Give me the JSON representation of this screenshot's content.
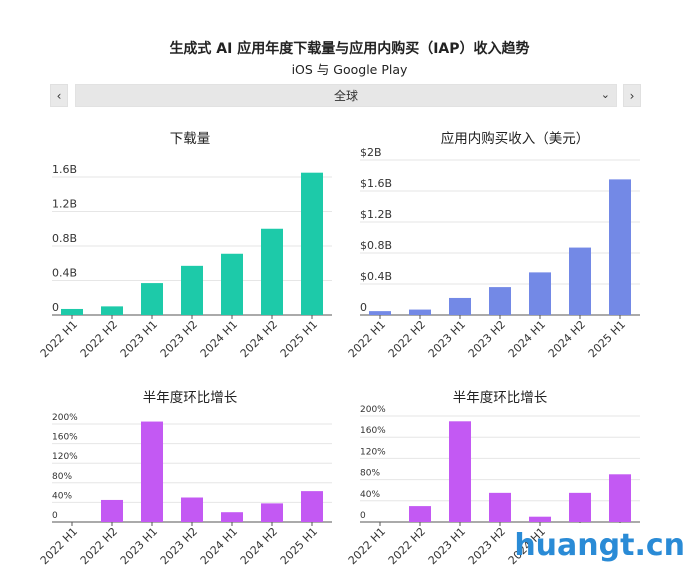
{
  "title": "生成式 AI 应用年度下载量与应用内购买（IAP）收入趋势",
  "subtitle": "iOS 与 Google Play",
  "controls": {
    "prev_label": "‹",
    "next_label": "›",
    "region_selected": "全球",
    "dropdown_icon": "chevron-down-icon"
  },
  "colors": {
    "downloads": "#1dcaa9",
    "revenue": "#7389e6",
    "growth": "#c359f3",
    "watermark": "#2a8bd6"
  },
  "watermark": "huangt.cn",
  "chart_data": [
    {
      "type": "bar",
      "title": "下载量",
      "categories": [
        "2022 H1",
        "2022 H2",
        "2023 H1",
        "2023 H2",
        "2024 H1",
        "2024 H2",
        "2025 H1"
      ],
      "values": [
        0.07,
        0.1,
        0.37,
        0.57,
        0.71,
        1.0,
        1.65
      ],
      "yticks": [
        0,
        0.4,
        0.8,
        1.2,
        1.6
      ],
      "ytick_labels": [
        "0",
        "0.4B",
        "0.8B",
        "1.2B",
        "1.6B"
      ],
      "ylim": [
        0,
        1.6
      ]
    },
    {
      "type": "bar",
      "title": "应用内购买收入（美元）",
      "categories": [
        "2022 H1",
        "2022 H2",
        "2023 H1",
        "2023 H2",
        "2024 H1",
        "2024 H2",
        "2025 H1"
      ],
      "values": [
        0.05,
        0.07,
        0.22,
        0.36,
        0.55,
        0.87,
        1.75
      ],
      "yticks": [
        0,
        0.4,
        0.8,
        1.2,
        1.6,
        2.0
      ],
      "ytick_labels": [
        "0",
        "$0.4B",
        "$0.8B",
        "$1.2B",
        "$1.6B",
        "$2B"
      ],
      "ylim": [
        0,
        2.0
      ]
    },
    {
      "type": "bar",
      "title": "半年度环比增长",
      "categories": [
        "2022 H1",
        "2022 H2",
        "2023 H1",
        "2023 H2",
        "2024 H1",
        "2024 H2",
        "2025 H1"
      ],
      "values": [
        0,
        45,
        205,
        50,
        20,
        38,
        63
      ],
      "yticks": [
        0,
        40,
        80,
        120,
        160,
        200
      ],
      "ytick_labels": [
        "0",
        "40%",
        "80%",
        "120%",
        "160%",
        "200%"
      ],
      "ylim": [
        0,
        200
      ]
    },
    {
      "type": "bar",
      "title": "半年度环比增长",
      "categories": [
        "2022 H1",
        "2022 H2",
        "2023 H1",
        "2023 H2",
        "2024 H1",
        "2024 H2",
        "2025 H1"
      ],
      "values": [
        0,
        30,
        190,
        55,
        10,
        55,
        90
      ],
      "yticks": [
        0,
        40,
        80,
        120,
        160,
        200
      ],
      "ytick_labels": [
        "0",
        "40%",
        "80%",
        "120%",
        "160%",
        "200%"
      ],
      "ylim": [
        0,
        200
      ]
    }
  ]
}
